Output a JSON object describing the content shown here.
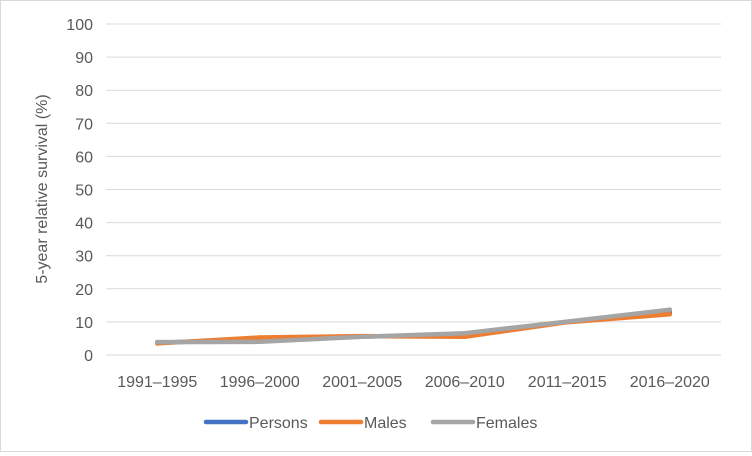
{
  "chart_data": {
    "type": "line",
    "title": "",
    "xlabel": "",
    "ylabel": "5-year relative survival (%)",
    "ylim": [
      0,
      100
    ],
    "yticks": [
      0,
      10,
      20,
      30,
      40,
      50,
      60,
      70,
      80,
      90,
      100
    ],
    "categories": [
      "1991–1995",
      "1996–2000",
      "2001–2005",
      "2006–2010",
      "2011–2015",
      "2016–2020"
    ],
    "series": [
      {
        "name": "Persons",
        "color": "#4472c4",
        "values": [
          3.7,
          4.7,
          5.6,
          6.0,
          10.0,
          12.9
        ]
      },
      {
        "name": "Males",
        "color": "#ed7d31",
        "values": [
          3.5,
          5.3,
          5.7,
          5.5,
          9.9,
          12.3
        ]
      },
      {
        "name": "Females",
        "color": "#a5a5a5",
        "values": [
          3.9,
          4.0,
          5.5,
          6.6,
          10.1,
          13.7
        ]
      }
    ],
    "grid": true,
    "legend_position": "bottom"
  }
}
